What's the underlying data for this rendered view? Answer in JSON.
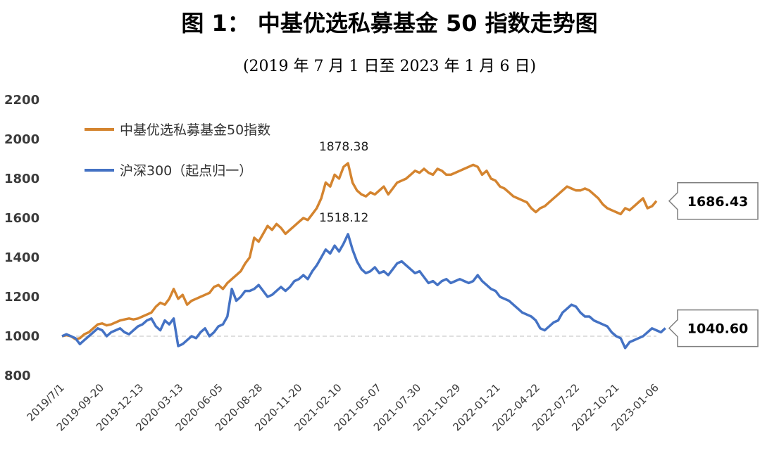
{
  "chart_data": {
    "type": "line",
    "title": "图 1： 中基优选私募基金 50 指数走势图",
    "subtitle": "(2019 年 7 月 1 日至 2023 年 1 月 6 日)",
    "xlabel": "",
    "ylabel": "",
    "ylim": [
      800,
      2200
    ],
    "yticks": [
      "800",
      "1000",
      "1200",
      "1400",
      "1600",
      "1800",
      "2000",
      "2200"
    ],
    "x_tick_labels": [
      "2019/7/1",
      "2019-09-20",
      "2019-12-13",
      "2020-03-13",
      "2020-06-05",
      "2020-08-28",
      "2020-11-20",
      "2021-02-10",
      "2021-05-07",
      "2021-07-30",
      "2021-10-29",
      "2022-01-21",
      "2022-04-22",
      "2022-07-22",
      "2022-10-21",
      "2023-01-06"
    ],
    "grid": false,
    "baseline": 1000,
    "legend_position": "top-left",
    "series": [
      {
        "name": "中基优选私募基金50指数",
        "color": "#D4842F",
        "values": [
          1000,
          1005,
          1000,
          985,
          990,
          1010,
          1020,
          1040,
          1060,
          1065,
          1055,
          1060,
          1070,
          1080,
          1085,
          1090,
          1085,
          1090,
          1100,
          1110,
          1120,
          1150,
          1170,
          1160,
          1190,
          1240,
          1190,
          1210,
          1160,
          1180,
          1190,
          1200,
          1210,
          1220,
          1250,
          1260,
          1240,
          1270,
          1290,
          1310,
          1330,
          1370,
          1400,
          1500,
          1480,
          1520,
          1560,
          1540,
          1570,
          1550,
          1520,
          1540,
          1560,
          1580,
          1600,
          1590,
          1620,
          1650,
          1700,
          1780,
          1760,
          1820,
          1800,
          1860,
          1878.38,
          1780,
          1740,
          1720,
          1710,
          1730,
          1720,
          1740,
          1760,
          1720,
          1750,
          1780,
          1790,
          1800,
          1820,
          1840,
          1830,
          1850,
          1830,
          1820,
          1850,
          1840,
          1820,
          1820,
          1830,
          1840,
          1850,
          1860,
          1870,
          1860,
          1820,
          1840,
          1800,
          1790,
          1760,
          1750,
          1730,
          1710,
          1700,
          1690,
          1680,
          1650,
          1630,
          1650,
          1660,
          1680,
          1700,
          1720,
          1740,
          1760,
          1750,
          1740,
          1740,
          1750,
          1740,
          1720,
          1700,
          1670,
          1650,
          1640,
          1630,
          1620,
          1650,
          1640,
          1660,
          1680,
          1700,
          1650,
          1660,
          1686.43
        ]
      },
      {
        "name": "沪深300（起点归一）",
        "color": "#4472C4",
        "values": [
          1000,
          1010,
          1000,
          990,
          960,
          980,
          1000,
          1020,
          1040,
          1030,
          1000,
          1020,
          1030,
          1040,
          1020,
          1010,
          1030,
          1050,
          1060,
          1080,
          1090,
          1050,
          1030,
          1080,
          1060,
          1090,
          950,
          960,
          980,
          1000,
          990,
          1020,
          1040,
          1000,
          1020,
          1050,
          1060,
          1100,
          1240,
          1180,
          1200,
          1230,
          1230,
          1240,
          1260,
          1230,
          1200,
          1210,
          1230,
          1250,
          1230,
          1250,
          1280,
          1290,
          1310,
          1290,
          1330,
          1360,
          1400,
          1440,
          1420,
          1460,
          1430,
          1470,
          1518.12,
          1440,
          1380,
          1340,
          1320,
          1330,
          1350,
          1320,
          1330,
          1310,
          1340,
          1370,
          1380,
          1360,
          1340,
          1320,
          1330,
          1300,
          1270,
          1280,
          1260,
          1280,
          1290,
          1270,
          1280,
          1290,
          1280,
          1270,
          1280,
          1310,
          1280,
          1260,
          1240,
          1230,
          1200,
          1190,
          1180,
          1160,
          1140,
          1120,
          1110,
          1100,
          1080,
          1040,
          1030,
          1050,
          1070,
          1080,
          1120,
          1140,
          1160,
          1150,
          1120,
          1100,
          1100,
          1080,
          1070,
          1060,
          1050,
          1020,
          1000,
          990,
          940,
          970,
          980,
          990,
          1000,
          1020,
          1040,
          1030,
          1020,
          1040.6
        ]
      }
    ],
    "annotations": {
      "peak_orange": "1878.38",
      "peak_blue": "1518.12",
      "end_orange": "1686.43",
      "end_blue": "1040.60"
    }
  }
}
